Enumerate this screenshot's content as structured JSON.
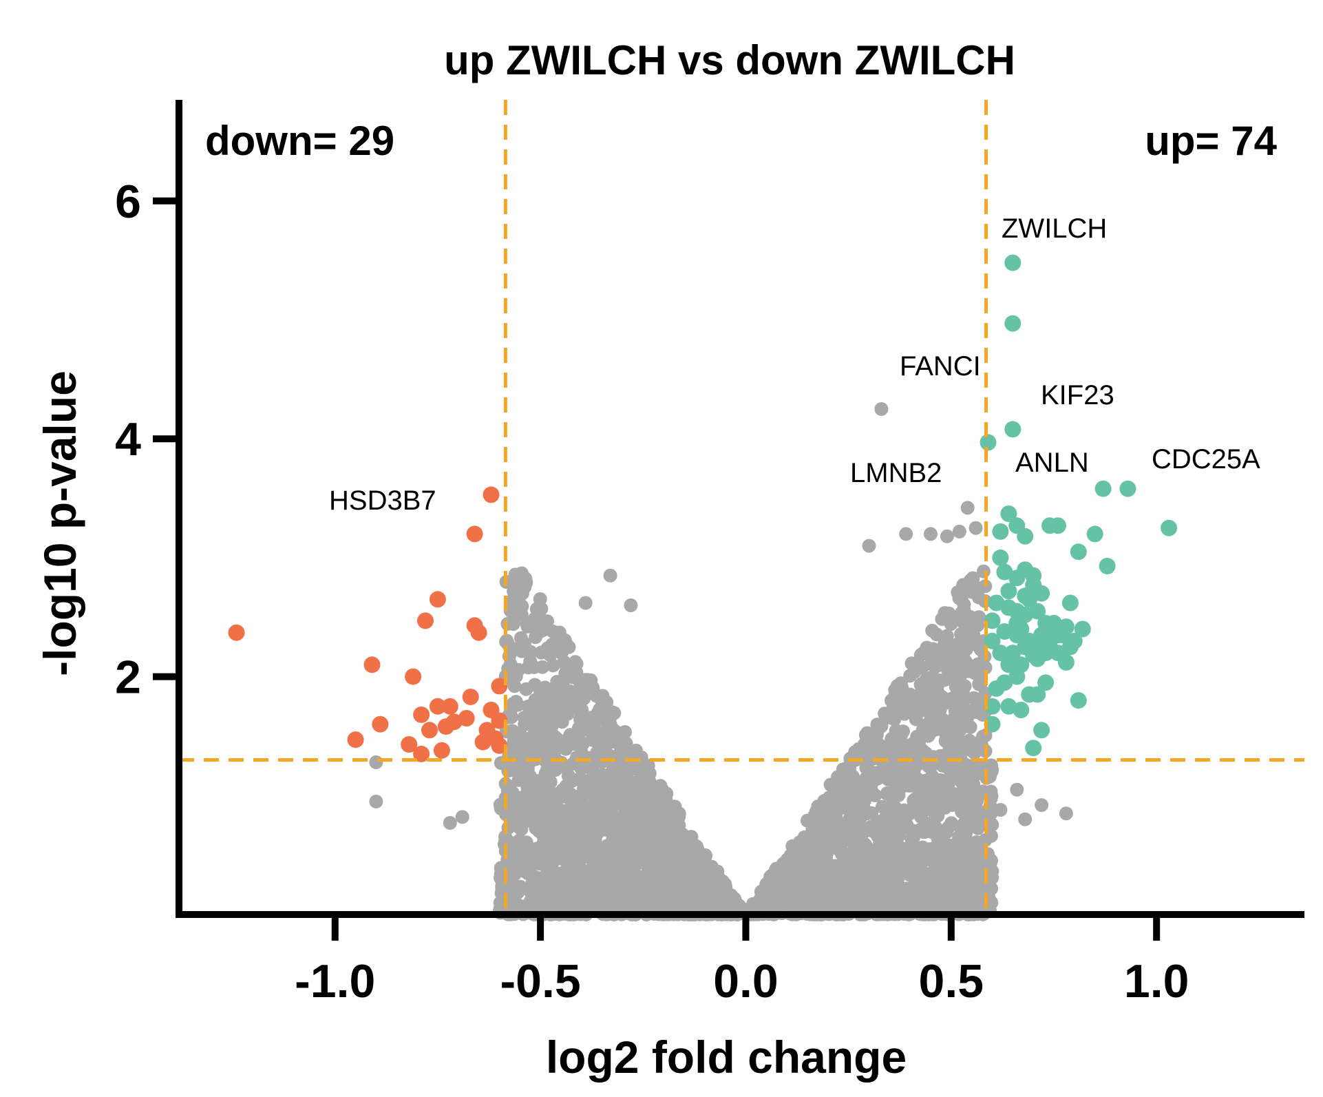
{
  "chart_data": {
    "type": "scatter",
    "title": "up ZWILCH vs down ZWILCH",
    "xlabel": "log2 fold change",
    "ylabel": "-log10 p-value",
    "xlim": [
      -1.38,
      1.36
    ],
    "ylim": [
      0,
      6.85
    ],
    "x_ticks": [
      -1.0,
      -0.5,
      0.0,
      0.5,
      1.0
    ],
    "x_tick_labels": [
      "-1.0",
      "-0.5",
      "0.0",
      "0.5",
      "1.0"
    ],
    "y_ticks": [
      2,
      4,
      6
    ],
    "y_tick_labels": [
      "2",
      "4",
      "6"
    ],
    "thresholds": {
      "log2fc": 0.585,
      "neg_log10_p": 1.3
    },
    "counts": {
      "down_label": "down= 29",
      "up_label": "up= 74"
    },
    "colors": {
      "up": "#66c2a5",
      "down": "#f07048",
      "ns": "#a8a8a8",
      "threshold": "#f5a623",
      "axis": "#000000"
    },
    "series": [
      {
        "name": "up",
        "points": [
          [
            0.65,
            5.48
          ],
          [
            0.65,
            4.97
          ],
          [
            0.65,
            4.08
          ],
          [
            0.59,
            3.97
          ],
          [
            0.87,
            3.58
          ],
          [
            0.93,
            3.58
          ],
          [
            1.03,
            3.25
          ],
          [
            0.64,
            3.37
          ],
          [
            0.62,
            3.22
          ],
          [
            0.66,
            3.27
          ],
          [
            0.68,
            3.18
          ],
          [
            0.74,
            3.27
          ],
          [
            0.76,
            3.27
          ],
          [
            0.85,
            3.2
          ],
          [
            0.81,
            3.05
          ],
          [
            0.88,
            2.93
          ],
          [
            0.62,
            3.0
          ],
          [
            0.63,
            2.88
          ],
          [
            0.66,
            2.83
          ],
          [
            0.68,
            2.9
          ],
          [
            0.7,
            2.85
          ],
          [
            0.64,
            2.72
          ],
          [
            0.68,
            2.68
          ],
          [
            0.7,
            2.77
          ],
          [
            0.72,
            2.7
          ],
          [
            0.61,
            2.62
          ],
          [
            0.64,
            2.58
          ],
          [
            0.66,
            2.55
          ],
          [
            0.68,
            2.52
          ],
          [
            0.71,
            2.55
          ],
          [
            0.73,
            2.45
          ],
          [
            0.75,
            2.38
          ],
          [
            0.79,
            2.62
          ],
          [
            0.6,
            2.47
          ],
          [
            0.63,
            2.38
          ],
          [
            0.66,
            2.35
          ],
          [
            0.69,
            2.3
          ],
          [
            0.71,
            2.27
          ],
          [
            0.73,
            2.2
          ],
          [
            0.76,
            2.35
          ],
          [
            0.78,
            2.42
          ],
          [
            0.79,
            2.25
          ],
          [
            0.6,
            2.3
          ],
          [
            0.62,
            2.2
          ],
          [
            0.65,
            2.2
          ],
          [
            0.67,
            2.1
          ],
          [
            0.68,
            2.25
          ],
          [
            0.7,
            2.18
          ],
          [
            0.72,
            2.35
          ],
          [
            0.74,
            2.3
          ],
          [
            0.77,
            2.35
          ],
          [
            0.8,
            2.3
          ],
          [
            0.64,
            2.1
          ],
          [
            0.66,
            2.0
          ],
          [
            0.78,
            2.12
          ],
          [
            0.81,
            1.8
          ],
          [
            0.6,
            1.75
          ],
          [
            0.64,
            1.75
          ],
          [
            0.67,
            1.72
          ],
          [
            0.69,
            1.85
          ],
          [
            0.71,
            1.85
          ],
          [
            0.73,
            1.95
          ],
          [
            0.6,
            1.6
          ],
          [
            0.72,
            1.55
          ],
          [
            0.7,
            1.4
          ],
          [
            0.61,
            1.9
          ],
          [
            0.75,
            2.45
          ],
          [
            0.82,
            2.4
          ],
          [
            0.66,
            2.45
          ],
          [
            0.69,
            2.65
          ],
          [
            0.71,
            2.15
          ],
          [
            0.63,
            1.95
          ],
          [
            0.76,
            2.2
          ],
          [
            0.67,
            2.4
          ]
        ]
      },
      {
        "name": "down",
        "points": [
          [
            -0.62,
            3.53
          ],
          [
            -0.66,
            3.2
          ],
          [
            -1.24,
            2.37
          ],
          [
            -0.75,
            2.65
          ],
          [
            -0.78,
            2.47
          ],
          [
            -0.66,
            2.43
          ],
          [
            -0.65,
            2.37
          ],
          [
            -0.91,
            2.1
          ],
          [
            -0.81,
            2.0
          ],
          [
            -0.6,
            1.92
          ],
          [
            -0.67,
            1.83
          ],
          [
            -0.72,
            1.75
          ],
          [
            -0.75,
            1.75
          ],
          [
            -0.79,
            1.68
          ],
          [
            -0.62,
            1.72
          ],
          [
            -0.68,
            1.65
          ],
          [
            -0.71,
            1.62
          ],
          [
            -0.6,
            1.63
          ],
          [
            -0.63,
            1.55
          ],
          [
            -0.73,
            1.58
          ],
          [
            -0.77,
            1.55
          ],
          [
            -0.89,
            1.6
          ],
          [
            -0.95,
            1.47
          ],
          [
            -0.82,
            1.43
          ],
          [
            -0.61,
            1.48
          ],
          [
            -0.64,
            1.45
          ],
          [
            -0.74,
            1.38
          ],
          [
            -0.79,
            1.35
          ],
          [
            -0.6,
            1.42
          ]
        ]
      },
      {
        "name": "ns",
        "points": [
          [
            0.33,
            4.25
          ],
          [
            0.54,
            3.42
          ],
          [
            0.45,
            3.2
          ],
          [
            0.39,
            3.2
          ],
          [
            0.3,
            3.1
          ],
          [
            0.49,
            3.18
          ],
          [
            0.52,
            3.22
          ],
          [
            0.56,
            3.25
          ],
          [
            -0.54,
            2.82
          ],
          [
            -0.33,
            2.85
          ],
          [
            -0.39,
            2.62
          ],
          [
            -0.28,
            2.6
          ],
          [
            -0.9,
            1.28
          ],
          [
            -0.9,
            0.95
          ],
          [
            0.66,
            1.05
          ],
          [
            0.72,
            0.92
          ],
          [
            0.78,
            0.85
          ],
          [
            0.62,
            0.88
          ],
          [
            0.68,
            0.8
          ],
          [
            0.59,
            0.75
          ],
          [
            -0.72,
            0.77
          ],
          [
            -0.69,
            0.82
          ]
        ],
        "dense_region_note": "bulk of non-significant genes forms a V-shaped cloud between roughly x=-0.6 and x=0.6, p-value 0 to 3"
      }
    ],
    "annotations": [
      {
        "text": "ZWILCH",
        "x": 0.65,
        "y": 5.48
      },
      {
        "text": "FANCI",
        "x": 0.59,
        "y": 3.97
      },
      {
        "text": "KIF23",
        "x": 0.65,
        "y": 4.08
      },
      {
        "text": "LMNB2",
        "x": 0.54,
        "y": 3.42
      },
      {
        "text": "ANLN",
        "x": 0.87,
        "y": 3.58
      },
      {
        "text": "CDC25A",
        "x": 1.03,
        "y": 3.25
      },
      {
        "text": "HSD3B7",
        "x": -0.62,
        "y": 3.53
      }
    ]
  }
}
